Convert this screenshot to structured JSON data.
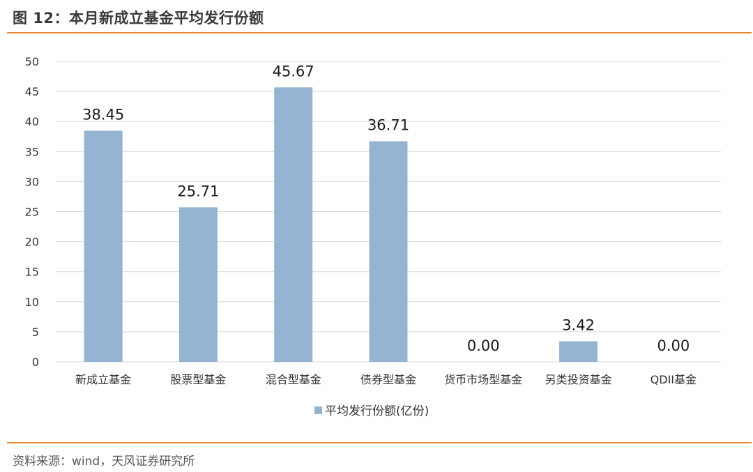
{
  "figure": {
    "title": "图 12：本月新成立基金平均发行份额",
    "source": "资料来源：wind，天风证券研究所"
  },
  "colors": {
    "bar": "#94b4d2",
    "accent": "#e8892e",
    "grid": "#d9d9d9"
  },
  "chart_data": {
    "type": "bar",
    "categories": [
      "新成立基金",
      "股票型基金",
      "混合型基金",
      "债券型基金",
      "货币市场型基金",
      "另类投资基金",
      "QDII基金"
    ],
    "series": [
      {
        "name": "平均发行份额(亿份)",
        "values": [
          38.45,
          25.71,
          45.67,
          36.71,
          0.0,
          3.42,
          0.0
        ],
        "labels": [
          "38.45",
          "25.71",
          "45.67",
          "36.71",
          "0.00",
          "3.42",
          "0.00"
        ]
      }
    ],
    "ylim": [
      0,
      50
    ],
    "yticks": [
      0,
      5,
      10,
      15,
      20,
      25,
      30,
      35,
      40,
      45,
      50
    ],
    "grid": true,
    "legend_position": "bottom-center"
  }
}
